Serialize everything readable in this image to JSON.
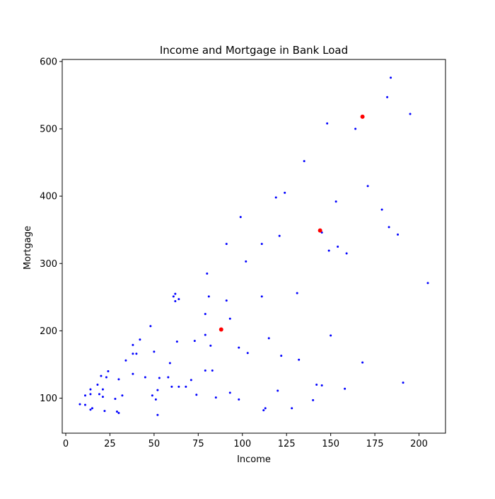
{
  "chart_data": {
    "type": "scatter",
    "title": "Income and Mortgage in Bank Load",
    "xlabel": "Income",
    "ylabel": "Mortgage",
    "xlim": [
      -2,
      215
    ],
    "ylim": [
      48,
      603
    ],
    "xticks": [
      0,
      25,
      50,
      75,
      100,
      125,
      150,
      175,
      200
    ],
    "yticks": [
      100,
      200,
      300,
      400,
      500,
      600
    ],
    "grid": false,
    "legend": "none",
    "series": [
      {
        "color": "#0000ff",
        "marker_size": "small",
        "points": [
          [
            8,
            91
          ],
          [
            11,
            90
          ],
          [
            11,
            104
          ],
          [
            14,
            106
          ],
          [
            14,
            83
          ],
          [
            14,
            113
          ],
          [
            15,
            85
          ],
          [
            18,
            120
          ],
          [
            19,
            106
          ],
          [
            20,
            133
          ],
          [
            21,
            113
          ],
          [
            21,
            102
          ],
          [
            22,
            81
          ],
          [
            23,
            131
          ],
          [
            24,
            140
          ],
          [
            28,
            99
          ],
          [
            29,
            80
          ],
          [
            30,
            78
          ],
          [
            30,
            128
          ],
          [
            32,
            104
          ],
          [
            34,
            156
          ],
          [
            38,
            179
          ],
          [
            38,
            166
          ],
          [
            38,
            136
          ],
          [
            40,
            166
          ],
          [
            42,
            187
          ],
          [
            45,
            131
          ],
          [
            48,
            207
          ],
          [
            49,
            104
          ],
          [
            50,
            169
          ],
          [
            51,
            98
          ],
          [
            52,
            75
          ],
          [
            52,
            112
          ],
          [
            53,
            130
          ],
          [
            58,
            131
          ],
          [
            59,
            152
          ],
          [
            60,
            117
          ],
          [
            61,
            251
          ],
          [
            62,
            255
          ],
          [
            62,
            244
          ],
          [
            63,
            184
          ],
          [
            64,
            247
          ],
          [
            64,
            117
          ],
          [
            68,
            117
          ],
          [
            71,
            127
          ],
          [
            73,
            185
          ],
          [
            74,
            105
          ],
          [
            79,
            225
          ],
          [
            79,
            194
          ],
          [
            79,
            141
          ],
          [
            80,
            285
          ],
          [
            81,
            251
          ],
          [
            82,
            178
          ],
          [
            83,
            141
          ],
          [
            85,
            101
          ],
          [
            91,
            245
          ],
          [
            91,
            329
          ],
          [
            93,
            218
          ],
          [
            93,
            108
          ],
          [
            98,
            175
          ],
          [
            98,
            98
          ],
          [
            99,
            369
          ],
          [
            102,
            303
          ],
          [
            103,
            167
          ],
          [
            111,
            329
          ],
          [
            111,
            251
          ],
          [
            112,
            82
          ],
          [
            113,
            85
          ],
          [
            115,
            189
          ],
          [
            119,
            398
          ],
          [
            120,
            111
          ],
          [
            121,
            341
          ],
          [
            122,
            163
          ],
          [
            124,
            405
          ],
          [
            128,
            85
          ],
          [
            131,
            256
          ],
          [
            132,
            157
          ],
          [
            135,
            452
          ],
          [
            140,
            97
          ],
          [
            142,
            120
          ],
          [
            145,
            346
          ],
          [
            145,
            119
          ],
          [
            148,
            508
          ],
          [
            149,
            319
          ],
          [
            150,
            193
          ],
          [
            153,
            392
          ],
          [
            154,
            325
          ],
          [
            158,
            114
          ],
          [
            159,
            315
          ],
          [
            164,
            500
          ],
          [
            168,
            153
          ],
          [
            171,
            415
          ],
          [
            179,
            380
          ],
          [
            182,
            547
          ],
          [
            183,
            354
          ],
          [
            184,
            576
          ],
          [
            188,
            343
          ],
          [
            191,
            123
          ],
          [
            195,
            522
          ],
          [
            205,
            271
          ]
        ]
      },
      {
        "color": "#ff0000",
        "marker_size": "large",
        "points": [
          [
            88,
            202
          ],
          [
            144,
            349
          ],
          [
            168,
            518
          ]
        ]
      }
    ]
  }
}
